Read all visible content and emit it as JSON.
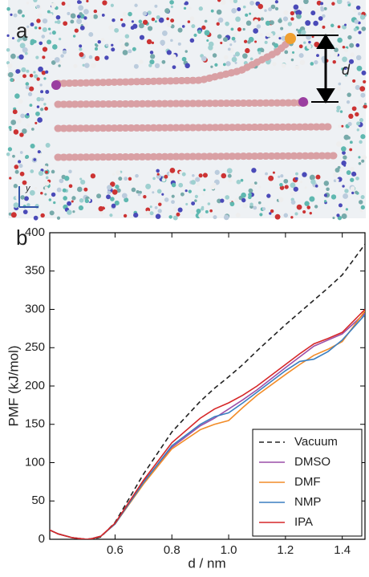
{
  "panel_a": {
    "label": "a",
    "distance_label": "d",
    "axis_label": "y"
  },
  "chart_data": {
    "type": "line",
    "panel_label": "b",
    "x_label": "d / nm",
    "y_label": "PMF (kJ/mol)",
    "x": [
      0.37,
      0.4,
      0.45,
      0.5,
      0.52,
      0.55,
      0.6,
      0.7,
      0.8,
      0.9,
      0.95,
      1.0,
      1.05,
      1.1,
      1.2,
      1.25,
      1.3,
      1.35,
      1.4,
      1.48
    ],
    "series": [
      {
        "name": "Vacuum",
        "color": "#222222",
        "dash": true,
        "values": [
          12,
          7,
          2,
          0,
          0,
          3,
          22,
          85,
          140,
          180,
          197,
          212,
          228,
          246,
          280,
          296,
          312,
          328,
          345,
          385
        ]
      },
      {
        "name": "DMSO",
        "color": "#9b4fa8",
        "values": [
          12,
          7,
          2,
          0,
          1,
          4,
          20,
          75,
          120,
          148,
          158,
          170,
          182,
          195,
          224,
          238,
          252,
          260,
          268,
          295
        ]
      },
      {
        "name": "DMF",
        "color": "#f28c28",
        "values": [
          12,
          7,
          2,
          0,
          1,
          4,
          20,
          72,
          118,
          143,
          150,
          155,
          172,
          188,
          215,
          228,
          240,
          248,
          258,
          298
        ]
      },
      {
        "name": "NMP",
        "color": "#3a7fc1",
        "values": [
          12,
          7,
          2,
          0,
          1,
          4,
          20,
          74,
          122,
          150,
          160,
          165,
          178,
          192,
          220,
          232,
          235,
          245,
          260,
          293
        ]
      },
      {
        "name": "IPA",
        "color": "#d62728",
        "values": [
          12,
          7,
          2,
          0,
          1,
          4,
          21,
          77,
          126,
          158,
          170,
          178,
          188,
          200,
          228,
          242,
          255,
          262,
          270,
          300
        ]
      }
    ],
    "xlim": [
      0.37,
      1.48
    ],
    "ylim": [
      0,
      400
    ],
    "xticks": [
      0.6,
      0.8,
      {
        "value": 1,
        "label": "1.0"
      },
      1.2,
      1.4
    ],
    "yticks": [
      0,
      50,
      100,
      150,
      200,
      250,
      300,
      350,
      400
    ],
    "grid": false,
    "legend_position": "lower right"
  }
}
